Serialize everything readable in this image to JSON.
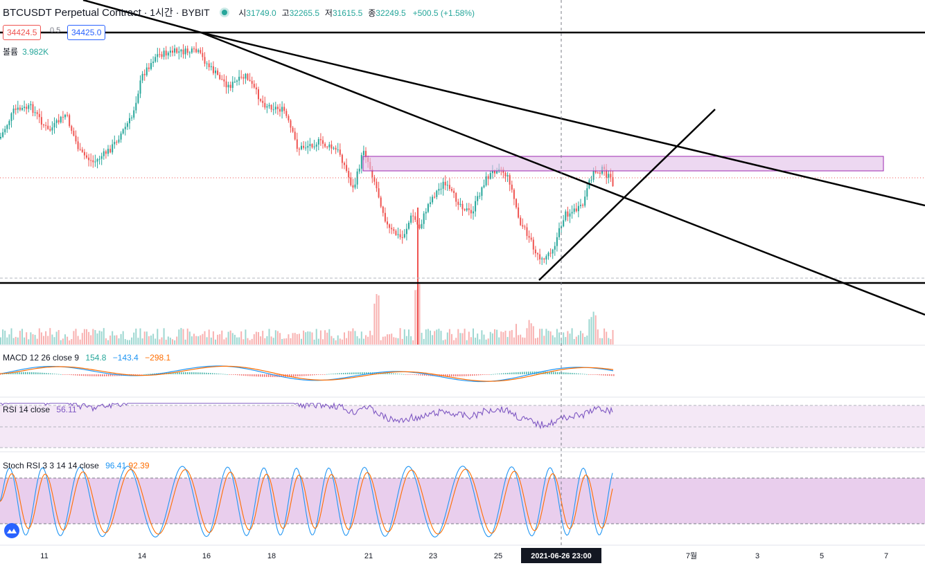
{
  "header": {
    "symbol": "BTCUSDT Perpetual Contract",
    "interval": "1시간",
    "exchange": "BYBIT",
    "open_label": "시",
    "open": "31749.0",
    "high_label": "고",
    "high": "32265.5",
    "low_label": "저",
    "low": "31615.5",
    "close_label": "종",
    "close": "32249.5",
    "change": "+500.5 (+1.58%)"
  },
  "price_boxes": {
    "bid": "34424.5",
    "spread": "0.5",
    "ask": "34425.0"
  },
  "volume": {
    "label": "볼륨",
    "value": "3.982K"
  },
  "macd": {
    "label": "MACD 12 26 close 9",
    "v1": "154.8",
    "v2": "−143.4",
    "v3": "−298.1"
  },
  "rsi": {
    "label": "RSI 14 close",
    "value": "56.11"
  },
  "stoch": {
    "label": "Stoch RSI 3 3 14 14 close",
    "k": "96.41",
    "d": "92.39"
  },
  "time_axis": {
    "labels": [
      "11",
      "14",
      "16",
      "18",
      "21",
      "23",
      "25",
      "7월",
      "3",
      "5",
      "7"
    ],
    "crosshair_label": "2021-06-26  23:00"
  },
  "colors": {
    "up": "#26a69a",
    "down": "#ef5350",
    "macd": "#2196f3",
    "signal": "#ff6d00",
    "rsi": "#7e57c2",
    "zone": "#e1bee7",
    "zone_border": "#9c27b0"
  },
  "icons": {
    "logo": "tradingview-cloud-icon",
    "status": "live-dot-icon"
  }
}
